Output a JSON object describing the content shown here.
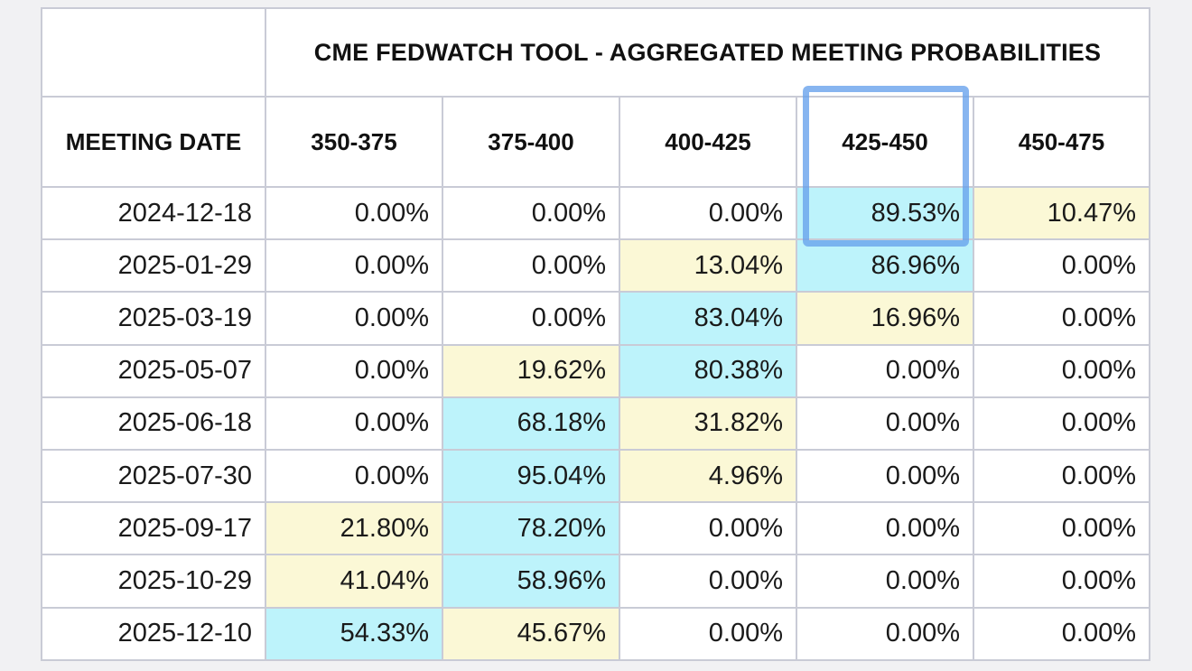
{
  "table": {
    "title": "CME FEDWATCH TOOL - AGGREGATED MEETING PROBABILITIES",
    "date_header": "MEETING DATE",
    "columns": [
      "350-375",
      "375-400",
      "400-425",
      "425-450",
      "450-475"
    ],
    "rows": [
      {
        "date": "2024-12-18",
        "values": [
          "0.00%",
          "0.00%",
          "0.00%",
          "89.53%",
          "10.47%"
        ],
        "highlight": [
          "",
          "",
          "",
          "blue",
          "yellow"
        ]
      },
      {
        "date": "2025-01-29",
        "values": [
          "0.00%",
          "0.00%",
          "13.04%",
          "86.96%",
          "0.00%"
        ],
        "highlight": [
          "",
          "",
          "yellow",
          "blue",
          ""
        ]
      },
      {
        "date": "2025-03-19",
        "values": [
          "0.00%",
          "0.00%",
          "83.04%",
          "16.96%",
          "0.00%"
        ],
        "highlight": [
          "",
          "",
          "blue",
          "yellow",
          ""
        ]
      },
      {
        "date": "2025-05-07",
        "values": [
          "0.00%",
          "19.62%",
          "80.38%",
          "0.00%",
          "0.00%"
        ],
        "highlight": [
          "",
          "yellow",
          "blue",
          "",
          ""
        ]
      },
      {
        "date": "2025-06-18",
        "values": [
          "0.00%",
          "68.18%",
          "31.82%",
          "0.00%",
          "0.00%"
        ],
        "highlight": [
          "",
          "blue",
          "yellow",
          "",
          ""
        ]
      },
      {
        "date": "2025-07-30",
        "values": [
          "0.00%",
          "95.04%",
          "4.96%",
          "0.00%",
          "0.00%"
        ],
        "highlight": [
          "",
          "blue",
          "yellow",
          "",
          ""
        ]
      },
      {
        "date": "2025-09-17",
        "values": [
          "21.80%",
          "78.20%",
          "0.00%",
          "0.00%",
          "0.00%"
        ],
        "highlight": [
          "yellow",
          "blue",
          "",
          "",
          ""
        ]
      },
      {
        "date": "2025-10-29",
        "values": [
          "41.04%",
          "58.96%",
          "0.00%",
          "0.00%",
          "0.00%"
        ],
        "highlight": [
          "yellow",
          "blue",
          "",
          "",
          ""
        ]
      },
      {
        "date": "2025-12-10",
        "values": [
          "54.33%",
          "45.67%",
          "0.00%",
          "0.00%",
          "0.00%"
        ],
        "highlight": [
          "blue",
          "yellow",
          "",
          "",
          ""
        ]
      }
    ]
  },
  "colors": {
    "highlight_blue": "#bdf3fb",
    "highlight_yellow": "#fbf8d6",
    "focus_outline": "#65a0ec",
    "grid_border": "#c9cbd6"
  }
}
